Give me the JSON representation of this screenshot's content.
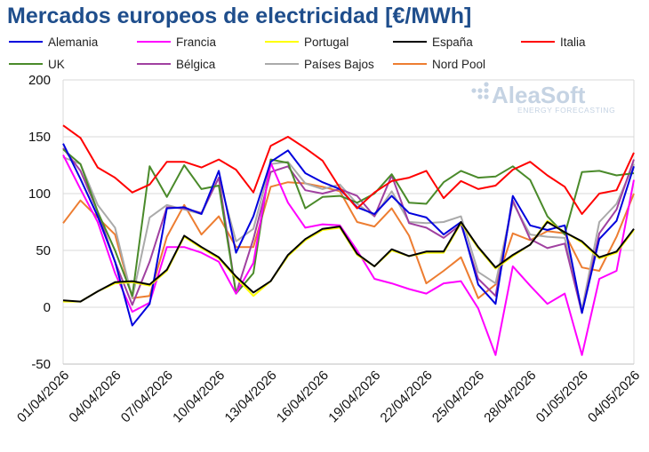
{
  "chart_data": {
    "type": "line",
    "title": "Mercados europeos de electricidad [€/MWh]",
    "xlabel": "",
    "ylabel": "",
    "ylim": [
      -50,
      200
    ],
    "yticks": [
      -50,
      0,
      50,
      100,
      150,
      200
    ],
    "grid": true,
    "legend_position": "top",
    "x": [
      "01/04/2026",
      "02/04/2026",
      "03/04/2026",
      "04/04/2026",
      "05/04/2026",
      "06/04/2026",
      "07/04/2026",
      "08/04/2026",
      "09/04/2026",
      "10/04/2026",
      "11/04/2026",
      "12/04/2026",
      "13/04/2026",
      "14/04/2026",
      "15/04/2026",
      "16/04/2026",
      "17/04/2026",
      "18/04/2026",
      "19/04/2026",
      "20/04/2026",
      "21/04/2026",
      "22/04/2026",
      "23/04/2026",
      "24/04/2026",
      "25/04/2026",
      "26/04/2026",
      "27/04/2026",
      "28/04/2026",
      "29/04/2026",
      "30/04/2026",
      "01/05/2026",
      "02/05/2026",
      "03/05/2026",
      "04/05/2026"
    ],
    "x_tick_labels": [
      "01/04/2026",
      "04/04/2026",
      "07/04/2026",
      "10/04/2026",
      "13/04/2026",
      "16/04/2026",
      "19/04/2026",
      "22/04/2026",
      "25/04/2026",
      "28/04/2026",
      "01/05/2026",
      "04/05/2026"
    ],
    "series": [
      {
        "name": "Alemania",
        "color": "#0000dd",
        "values": [
          144,
          113,
          80,
          40,
          -16,
          3,
          87,
          88,
          82,
          120,
          48,
          80,
          128,
          138,
          118,
          110,
          104,
          88,
          82,
          98,
          83,
          79,
          64,
          75,
          20,
          3,
          98,
          72,
          68,
          72,
          -5,
          60,
          76,
          124
        ]
      },
      {
        "name": "Francia",
        "color": "#ff00ff",
        "values": [
          134,
          104,
          75,
          30,
          -4,
          4,
          53,
          53,
          48,
          40,
          12,
          39,
          127,
          92,
          70,
          73,
          72,
          50,
          25,
          21,
          16,
          12,
          21,
          23,
          -1,
          -42,
          36,
          19,
          3,
          12,
          -42,
          25,
          32,
          112
        ]
      },
      {
        "name": "Portugal",
        "color": "#ffff00",
        "values": [
          5,
          5,
          14,
          21,
          22,
          19,
          32,
          62,
          52,
          43,
          26,
          10,
          23,
          45,
          59,
          68,
          70,
          46,
          36,
          50,
          45,
          48,
          48,
          74,
          52,
          34,
          45,
          55,
          76,
          66,
          57,
          43,
          48,
          68
        ]
      },
      {
        "name": "España",
        "color": "#000000",
        "values": [
          6,
          5,
          14,
          22,
          23,
          20,
          33,
          63,
          53,
          44,
          27,
          13,
          23,
          46,
          60,
          69,
          71,
          47,
          36,
          51,
          45,
          49,
          49,
          75,
          53,
          35,
          46,
          55,
          75,
          66,
          58,
          44,
          49,
          69
        ]
      },
      {
        "name": "Italia",
        "color": "#ff0000",
        "values": [
          160,
          149,
          123,
          114,
          101,
          108,
          128,
          128,
          123,
          130,
          121,
          101,
          142,
          150,
          140,
          129,
          105,
          87,
          101,
          111,
          114,
          120,
          96,
          111,
          104,
          107,
          121,
          128,
          116,
          106,
          82,
          100,
          103,
          136
        ]
      },
      {
        "name": "UK",
        "color": "#4a8a2a",
        "values": [
          139,
          126,
          84,
          50,
          10,
          124,
          97,
          125,
          104,
          107,
          12,
          30,
          130,
          127,
          87,
          97,
          98,
          92,
          100,
          117,
          92,
          91,
          110,
          120,
          114,
          115,
          124,
          112,
          80,
          64,
          119,
          120,
          116,
          118
        ]
      },
      {
        "name": "Bélgica",
        "color": "#a040a0",
        "values": [
          140,
          120,
          84,
          40,
          2,
          40,
          88,
          87,
          83,
          114,
          12,
          60,
          119,
          124,
          103,
          100,
          104,
          98,
          80,
          116,
          74,
          70,
          61,
          73,
          25,
          10,
          94,
          60,
          52,
          56,
          -5,
          65,
          86,
          130
        ]
      },
      {
        "name": "Países Bajos",
        "color": "#aaaaaa",
        "values": [
          132,
          126,
          90,
          70,
          8,
          79,
          90,
          86,
          82,
          114,
          58,
          69,
          126,
          128,
          109,
          104,
          108,
          91,
          80,
          102,
          75,
          74,
          75,
          80,
          31,
          21,
          92,
          64,
          62,
          61,
          -2,
          75,
          91,
          126
        ]
      },
      {
        "name": "Nord Pool",
        "color": "#ed7d31",
        "values": [
          74,
          94,
          79,
          64,
          8,
          10,
          62,
          90,
          64,
          80,
          53,
          53,
          106,
          110,
          109,
          106,
          102,
          75,
          71,
          87,
          63,
          21,
          32,
          44,
          8,
          20,
          65,
          59,
          67,
          65,
          35,
          32,
          62,
          100
        ]
      }
    ]
  },
  "logo": {
    "brand": "AleaSoft",
    "tagline": "ENERGY FORECASTING"
  }
}
